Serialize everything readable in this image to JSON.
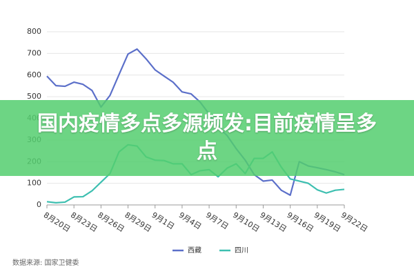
{
  "chart_data": {
    "type": "line",
    "categories": [
      "8月20日",
      null,
      null,
      "8月23日",
      null,
      null,
      "8月26日",
      null,
      null,
      "8月29日",
      null,
      null,
      "9月1日",
      null,
      null,
      "9月4日",
      null,
      null,
      "9月7日",
      null,
      null,
      "9月10日",
      null,
      null,
      "9月13日",
      null,
      null,
      "9月16日",
      null,
      null,
      "9月19日",
      null,
      null,
      "9月22日"
    ],
    "series": [
      {
        "name": "西藏",
        "color": "#5b6fc9",
        "values": [
          595,
          551,
          548,
          567,
          557,
          529,
          452,
          506,
          602,
          697,
          720,
          675,
          624,
          595,
          567,
          522,
          513,
          475,
          420,
          360,
          320,
          260,
          207,
          140,
          110,
          115,
          68,
          45,
          200,
          180,
          172,
          163,
          153,
          140
        ]
      },
      {
        "name": "四川",
        "color": "#3dbfb0",
        "values": [
          15,
          10,
          13,
          37,
          38,
          65,
          105,
          145,
          245,
          278,
          272,
          222,
          207,
          205,
          190,
          190,
          140,
          158,
          163,
          130,
          170,
          190,
          145,
          215,
          215,
          245,
          175,
          120,
          110,
          100,
          70,
          55,
          68,
          72
        ]
      }
    ],
    "ylim": [
      0,
      800
    ],
    "yticks": [
      0,
      100,
      200,
      300,
      400,
      500,
      600,
      700,
      800
    ],
    "grid": true,
    "source": "数据来源: 国家卫健委",
    "banner": "国内疫情多点多源频发:目前疫情呈多点"
  }
}
